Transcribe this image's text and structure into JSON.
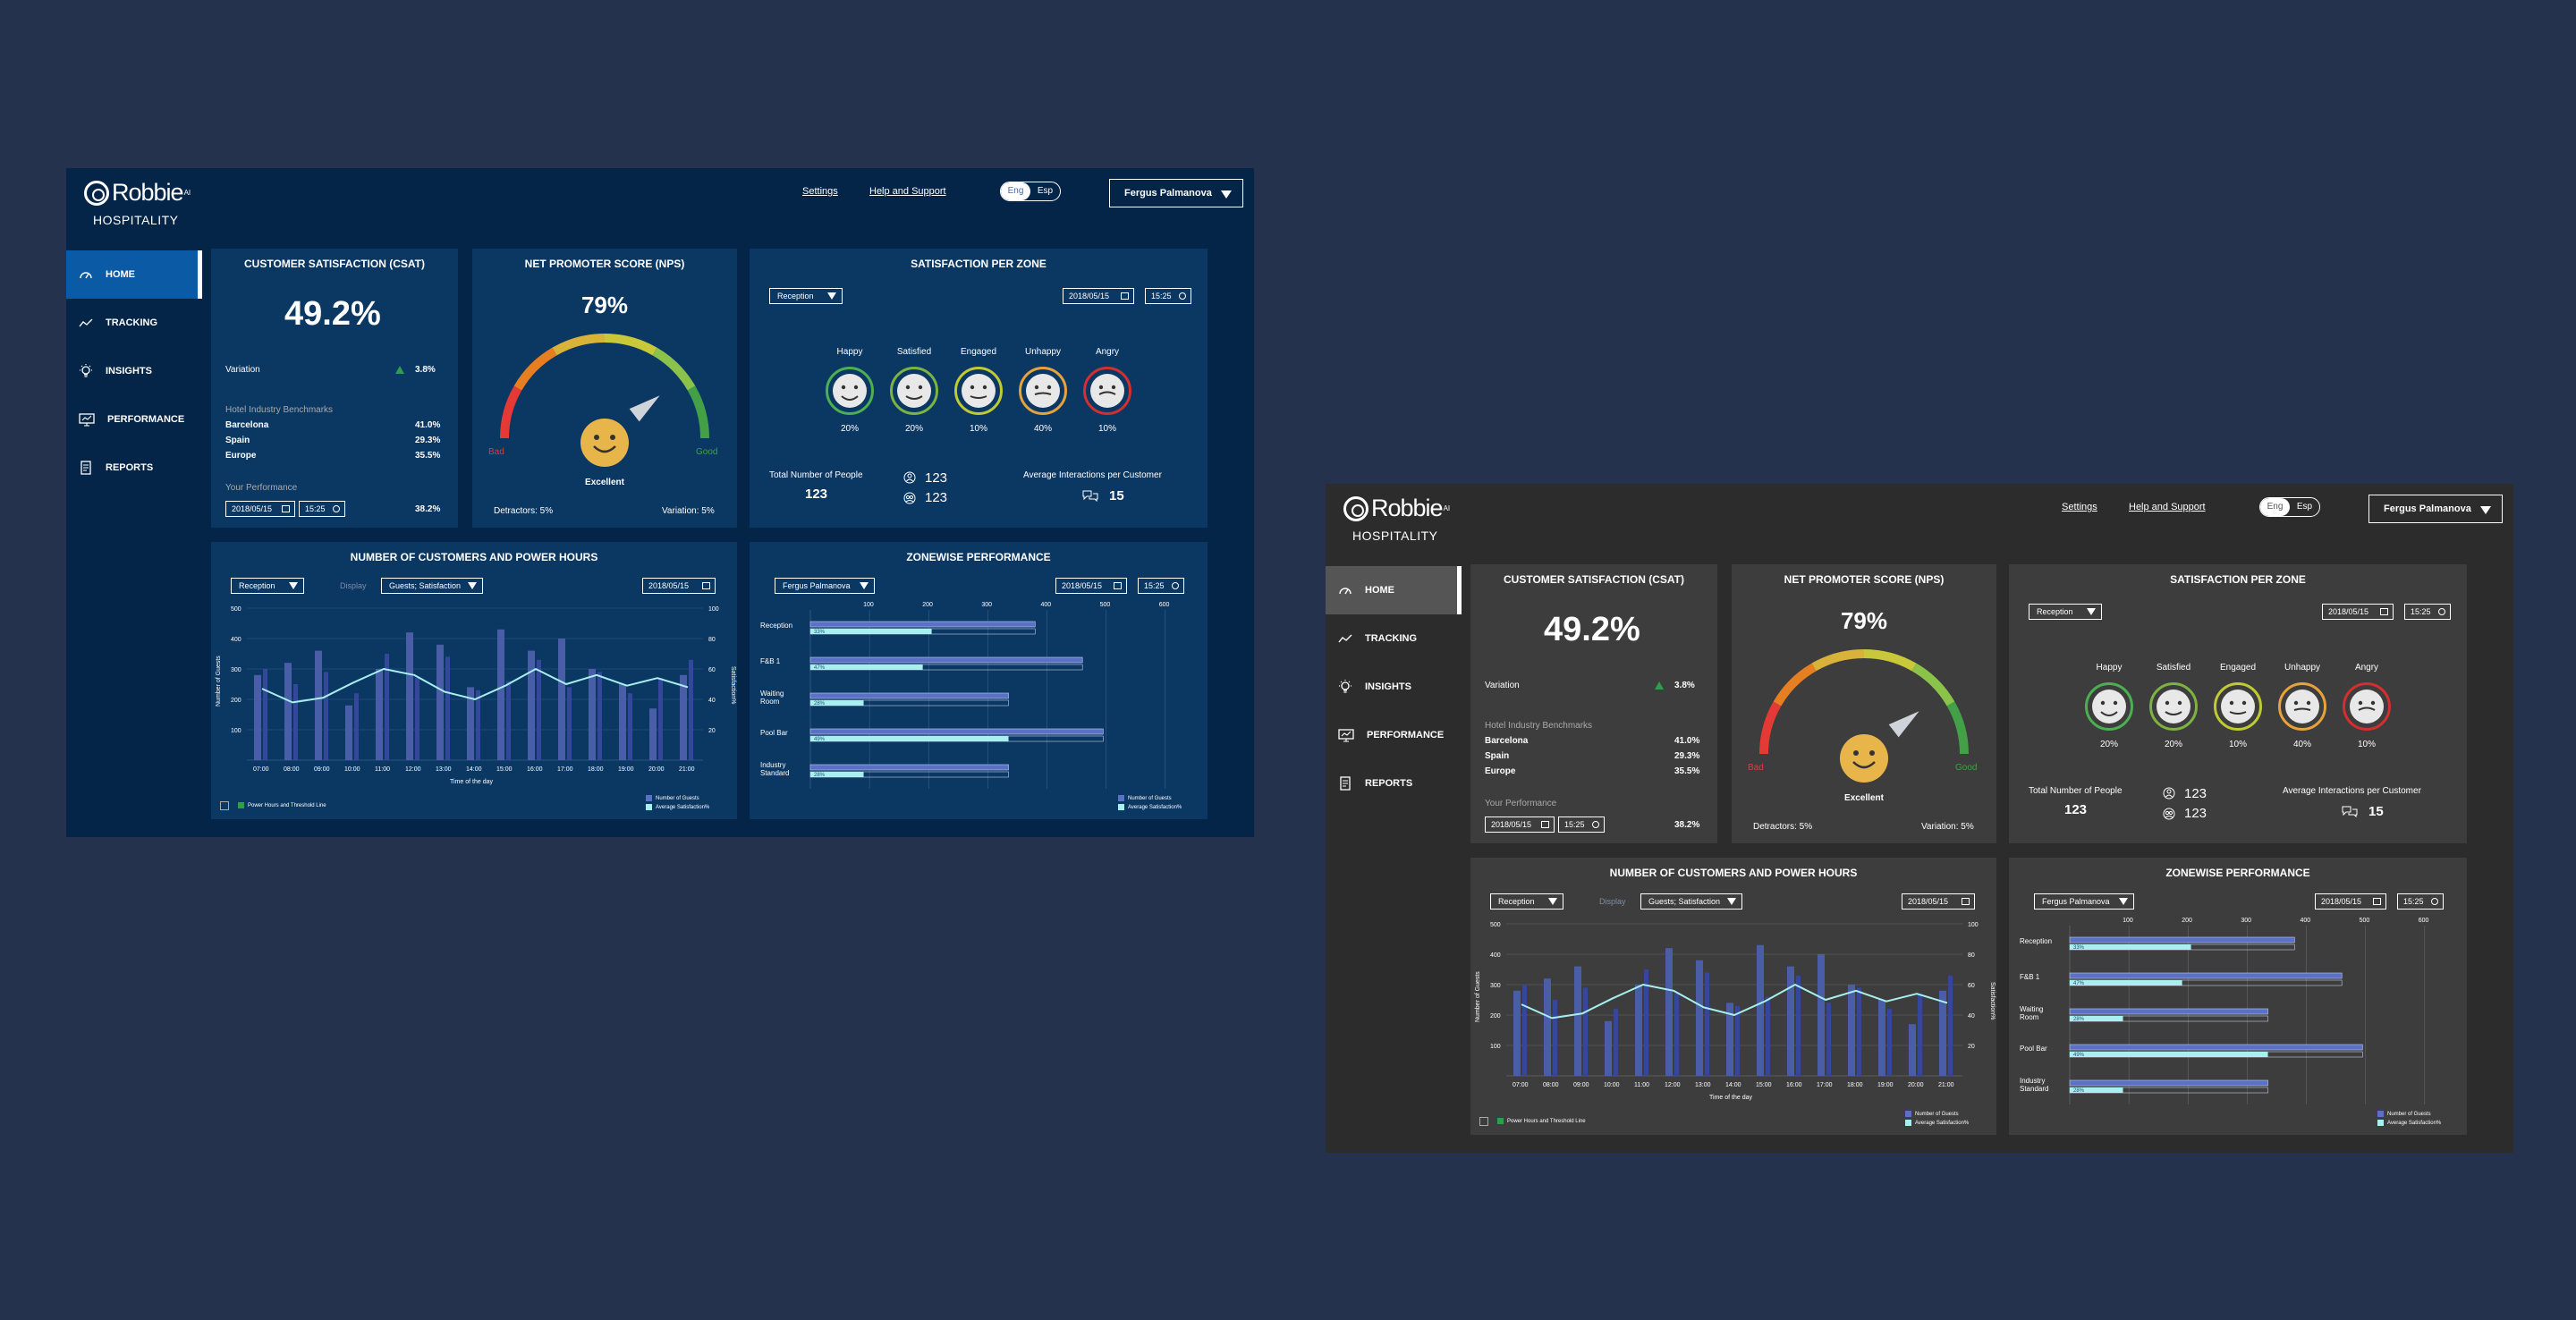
{
  "app": {
    "brand": "Robbie",
    "brand_suffix": "AI",
    "subtitle": "HOSPITALITY",
    "settings_link": "Settings",
    "help_link": "Help and Support",
    "lang_eng": "Eng",
    "lang_esp": "Esp",
    "user_name": "Fergus Palmanova"
  },
  "nav": [
    {
      "label": "HOME",
      "icon": "gauge-icon",
      "active": true
    },
    {
      "label": "TRACKING",
      "icon": "trend-line-icon"
    },
    {
      "label": "INSIGHTS",
      "icon": "lightbulb-icon"
    },
    {
      "label": "PERFORMANCE",
      "icon": "monitor-icon"
    },
    {
      "label": "REPORTS",
      "icon": "report-icon"
    }
  ],
  "csat": {
    "title": "CUSTOMER SATISFACTION (CSAT)",
    "value": "49.2%",
    "variation_label": "Variation",
    "variation_value": "3.8%",
    "benchmarks_label": "Hotel Industry Benchmarks",
    "benchmarks": [
      {
        "name": "Barcelona",
        "value": "41.0%"
      },
      {
        "name": "Spain",
        "value": "29.3%"
      },
      {
        "name": "Europe",
        "value": "35.5%"
      }
    ],
    "perf_label": "Your Performance",
    "date": "2018/05/15",
    "time": "15:25",
    "perf_value": "38.2%"
  },
  "nps": {
    "title": "NET PROMOTER SCORE (NPS)",
    "value": "79%",
    "bad_label": "Bad",
    "good_label": "Good",
    "rating": "Excellent",
    "detractors": "Detractors: 5%",
    "variation": "Variation: 5%",
    "needle_fraction": 0.79
  },
  "zone": {
    "title": "SATISFACTION PER ZONE",
    "dropdown": "Reception",
    "date": "2018/05/15",
    "time": "15:25",
    "moods": [
      {
        "label": "Happy",
        "pct": "20%",
        "ring": "#4caf50"
      },
      {
        "label": "Satisfied",
        "pct": "20%",
        "ring": "#7cb342"
      },
      {
        "label": "Engaged",
        "pct": "10%",
        "ring": "#c0ca33"
      },
      {
        "label": "Unhappy",
        "pct": "40%",
        "ring": "#e6a23c"
      },
      {
        "label": "Angry",
        "pct": "10%",
        "ring": "#d32f2f"
      }
    ],
    "people_label": "Total Number of People",
    "people_value": "123",
    "stat1": "123",
    "stat2": "123",
    "interactions_label": "Average Interactions per Customer",
    "interactions_value": "15"
  },
  "power": {
    "title": "NUMBER OF CUSTOMERS AND POWER HOURS",
    "dropdown1": "Reception",
    "display_label": "Display",
    "dropdown2": "Guests; Satisfaction",
    "date": "2018/05/15",
    "legend_check": "Power Hours and Threshold Line",
    "legend_guests": "Number of Guests",
    "legend_sat": "Average Satisfaction%"
  },
  "zonewise": {
    "title": "ZONEWISE PERFORMANCE",
    "dropdown": "Fergus Palmanova",
    "date": "2018/05/15",
    "time": "15:25",
    "legend_guests": "Number of Guests",
    "legend_sat": "Average Satisfaction%"
  },
  "chart_data": [
    {
      "type": "bar",
      "title": "NUMBER OF CUSTOMERS AND POWER HOURS",
      "xlabel": "Time of the day",
      "ylabel": "Number of Guests",
      "y2label": "Satisfaction%",
      "categories": [
        "07:00",
        "08:00",
        "09:00",
        "10:00",
        "11:00",
        "12:00",
        "13:00",
        "14:00",
        "15:00",
        "16:00",
        "17:00",
        "18:00",
        "19:00",
        "20:00",
        "21:00"
      ],
      "ylim": [
        0,
        500
      ],
      "yticks": [
        100,
        200,
        300,
        400,
        500
      ],
      "y2lim": [
        0,
        100
      ],
      "y2ticks": [
        20,
        40,
        60,
        80,
        100
      ],
      "series": [
        {
          "name": "Number of Guests",
          "type": "bar",
          "values": [
            280,
            320,
            360,
            180,
            300,
            420,
            380,
            240,
            430,
            360,
            400,
            300,
            250,
            170,
            280
          ],
          "secondary": [
            300,
            250,
            290,
            220,
            350,
            270,
            340,
            230,
            260,
            330,
            240,
            290,
            220,
            270,
            330
          ]
        },
        {
          "name": "Average Satisfaction%",
          "type": "line",
          "axis": "y2",
          "values": [
            47,
            38,
            41,
            51,
            60,
            56,
            45,
            40,
            49,
            60,
            50,
            56,
            49,
            54,
            48
          ]
        }
      ],
      "legend": "bottom-right",
      "grid": true
    },
    {
      "type": "bar",
      "orientation": "horizontal",
      "title": "ZONEWISE PERFORMANCE",
      "categories": [
        "Reception",
        "F&B 1",
        "Waiting\nRoom",
        "Pool Bar",
        "Industry\nStandard"
      ],
      "xlim": [
        0,
        620
      ],
      "xticks": [
        100,
        200,
        300,
        400,
        500,
        600
      ],
      "series": [
        {
          "name": "Number of Guests",
          "values": [
            380,
            460,
            335,
            495,
            335
          ]
        },
        {
          "name": "Average Satisfaction%",
          "values": [
            205,
            190,
            90,
            335,
            90
          ]
        }
      ],
      "bar_labels": [
        "33%",
        "47%",
        "28%",
        "49%",
        "28%"
      ],
      "legend": "bottom-right",
      "grid": true
    }
  ]
}
